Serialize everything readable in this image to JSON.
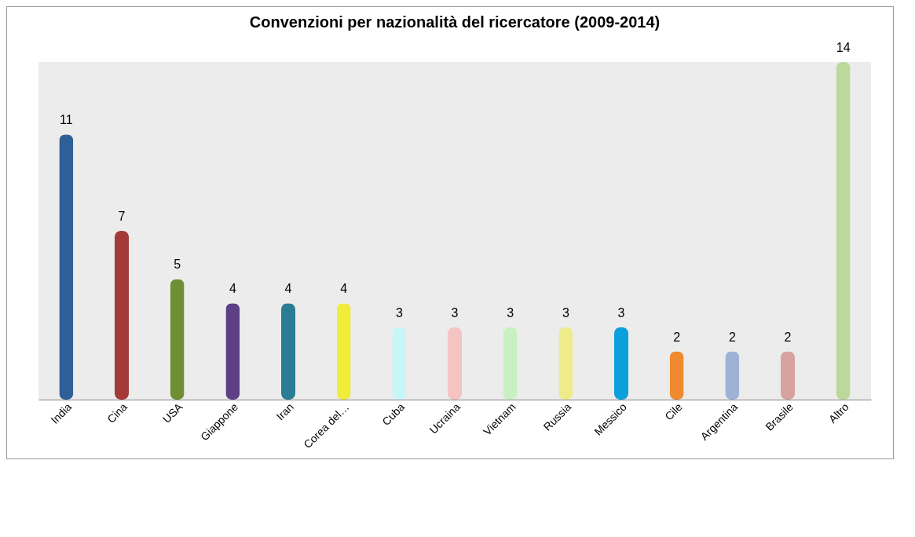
{
  "chart_data": {
    "type": "bar",
    "title": "Convenzioni per nazionalità del ricercatore (2009-2014)",
    "categories": [
      "India",
      "Cina",
      "USA",
      "Giappone",
      "Iran",
      "Corea del…",
      "Cuba",
      "Ucraina",
      "Vietnam",
      "Russia",
      "Messico",
      "Cile",
      "Argentina",
      "Brasile",
      "Altro"
    ],
    "values": [
      11,
      7,
      5,
      4,
      4,
      4,
      3,
      3,
      3,
      3,
      3,
      2,
      2,
      2,
      14
    ],
    "colors": [
      "#2e5f96",
      "#a33a38",
      "#6f8f35",
      "#5d3f86",
      "#2a7d92",
      "#f0ec3a",
      "#c8f6f8",
      "#f6c3c3",
      "#c8f0c0",
      "#eeec8a",
      "#0aa0dc",
      "#ef8a2e",
      "#9eb2d6",
      "#d6a3a0",
      "#bcd89a"
    ],
    "data_labels": true
  }
}
